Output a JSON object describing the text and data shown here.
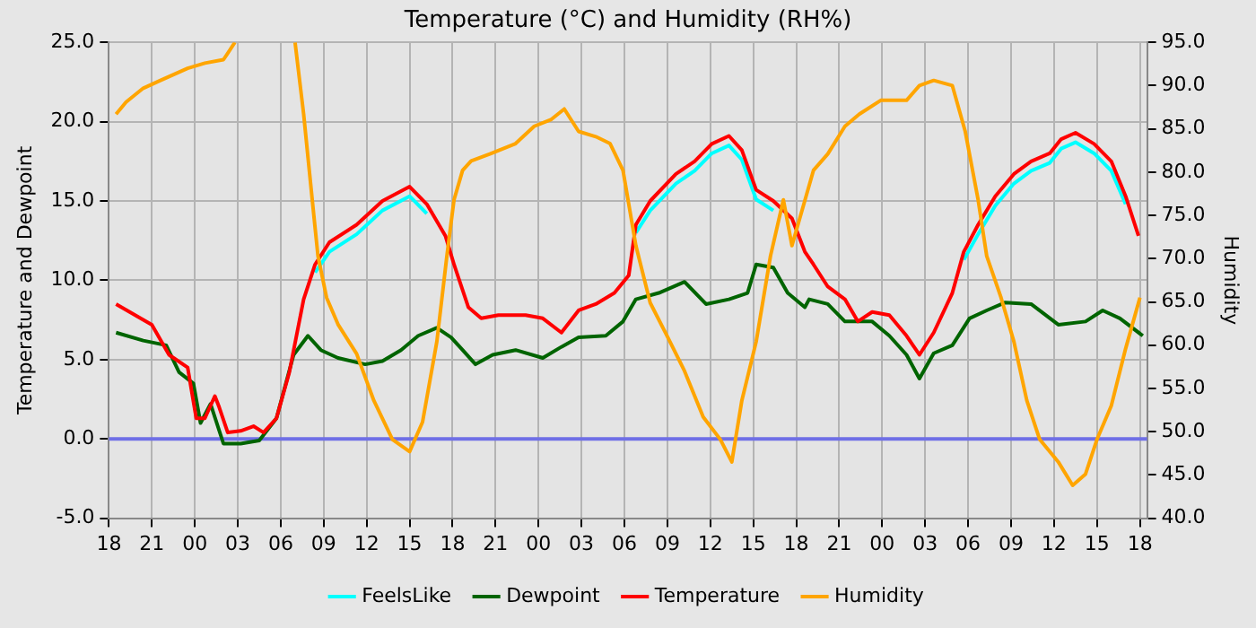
{
  "chart_data": {
    "type": "line",
    "title": "Temperature (°C) and Humidity (RH%)",
    "ylabel": "Temperature and Dewpoint",
    "y2label": "Humidity",
    "xlim": [
      "--01-01T18:00",
      "--01-04T18:30"
    ],
    "xticks": [
      {
        "value": "--01-01T18:00",
        "label": "18"
      },
      {
        "value": "--01-01T21:00",
        "label": "21"
      },
      {
        "value": "--01-02T00:00",
        "label": "00"
      },
      {
        "value": "--01-02T03:00",
        "label": "03"
      },
      {
        "value": "--01-02T06:00",
        "label": "06"
      },
      {
        "value": "--01-02T09:00",
        "label": "09"
      },
      {
        "value": "--01-02T12:00",
        "label": "12"
      },
      {
        "value": "--01-02T15:00",
        "label": "15"
      },
      {
        "value": "--01-02T18:00",
        "label": "18"
      },
      {
        "value": "--01-02T21:00",
        "label": "21"
      },
      {
        "value": "--01-03T00:00",
        "label": "00"
      },
      {
        "value": "--01-03T03:00",
        "label": "03"
      },
      {
        "value": "--01-03T06:00",
        "label": "06"
      },
      {
        "value": "--01-03T09:00",
        "label": "09"
      },
      {
        "value": "--01-03T12:00",
        "label": "12"
      },
      {
        "value": "--01-03T15:00",
        "label": "15"
      },
      {
        "value": "--01-03T18:00",
        "label": "18"
      },
      {
        "value": "--01-03T21:00",
        "label": "21"
      },
      {
        "value": "--01-04T00:00",
        "label": "00"
      },
      {
        "value": "--01-04T03:00",
        "label": "03"
      },
      {
        "value": "--01-04T06:00",
        "label": "06"
      },
      {
        "value": "--01-04T09:00",
        "label": "09"
      },
      {
        "value": "--01-04T12:00",
        "label": "12"
      },
      {
        "value": "--01-04T15:00",
        "label": "15"
      },
      {
        "value": "--01-04T18:00",
        "label": "18"
      }
    ],
    "ylim": [
      -5,
      25
    ],
    "yticks": [
      {
        "value": -5,
        "label": "-5.0"
      },
      {
        "value": 0,
        "label": "0.0"
      },
      {
        "value": 5,
        "label": "5.0"
      },
      {
        "value": 10,
        "label": "10.0"
      },
      {
        "value": 15,
        "label": "15.0"
      },
      {
        "value": 20,
        "label": "20.0"
      },
      {
        "value": 25,
        "label": "25.0"
      }
    ],
    "y2lim": [
      40,
      95
    ],
    "y2ticks": [
      {
        "value": 40,
        "label": "40.0"
      },
      {
        "value": 45,
        "label": "45.0"
      },
      {
        "value": 50,
        "label": "50.0"
      },
      {
        "value": 55,
        "label": "55.0"
      },
      {
        "value": 60,
        "label": "60.0"
      },
      {
        "value": 65,
        "label": "65.0"
      },
      {
        "value": 70,
        "label": "70.0"
      },
      {
        "value": 75,
        "label": "75.0"
      },
      {
        "value": 80,
        "label": "80.0"
      },
      {
        "value": 85,
        "label": "85.0"
      },
      {
        "value": 90,
        "label": "90.0"
      },
      {
        "value": 95,
        "label": "95.0"
      }
    ],
    "grid": true,
    "legend": "bottom",
    "marker": "none",
    "line_style": "solid",
    "ref_lines": [
      {
        "axis": "y",
        "value": 0,
        "color": "#6f6fe6"
      }
    ],
    "series": [
      {
        "name": "FeelsLike",
        "color": "#00ffff",
        "x": [
          "--01-02T08:24",
          "--01-02T09:24",
          "--01-02T11:18",
          "--01-02T13:06",
          "--01-02T15:00",
          "--01-02T16:12",
          "--01-03T00:00",
          "--01-03T06:48",
          "--01-03T07:48",
          "--01-03T09:36",
          "--01-03T10:54",
          "--01-03T12:06",
          "--01-03T13:18",
          "--01-03T14:12",
          "--01-03T15:12",
          "--01-03T16:24",
          "--01-04T00:00",
          "--01-04T05:42",
          "--01-04T06:42",
          "--01-04T07:54",
          "--01-04T09:12",
          "--01-04T10:24",
          "--01-04T11:42",
          "--01-04T12:30",
          "--01-04T13:30",
          "--01-04T14:48",
          "--01-04T16:00",
          "--01-04T17:00"
        ],
        "values": [
          10.5,
          11.8,
          12.9,
          14.4,
          15.3,
          14.2,
          null,
          13.0,
          14.4,
          16.1,
          16.9,
          18.0,
          18.5,
          17.6,
          15.1,
          14.4,
          null,
          11.3,
          12.9,
          14.7,
          16.1,
          16.9,
          17.4,
          18.3,
          18.7,
          18.0,
          16.9,
          14.8
        ]
      },
      {
        "name": "Dewpoint",
        "color": "#006400",
        "x": [
          "--01-01T18:30",
          "--01-01T20:24",
          "--01-01T22:00",
          "--01-01T22:54",
          "--01-01T23:54",
          "--01-02T00:24",
          "--01-02T01:06",
          "--01-02T02:00",
          "--01-02T03:12",
          "--01-02T04:30",
          "--01-02T05:42",
          "--01-02T06:54",
          "--01-02T07:54",
          "--01-02T08:48",
          "--01-02T10:00",
          "--01-02T11:54",
          "--01-02T13:06",
          "--01-02T14:24",
          "--01-02T15:36",
          "--01-02T16:54",
          "--01-02T17:54",
          "--01-02T18:42",
          "--01-02T19:36",
          "--01-02T20:48",
          "--01-02T22:24",
          "--01-03T00:18",
          "--01-03T01:36",
          "--01-03T02:48",
          "--01-03T04:42",
          "--01-03T05:54",
          "--01-03T06:48",
          "--01-03T08:24",
          "--01-03T10:12",
          "--01-03T11:42",
          "--01-03T13:18",
          "--01-03T14:36",
          "--01-03T15:12",
          "--01-03T16:24",
          "--01-03T17:24",
          "--01-03T18:36",
          "--01-03T18:54",
          "--01-03T20:12",
          "--01-03T21:24",
          "--01-03T23:18",
          "--01-04T00:30",
          "--01-04T01:42",
          "--01-04T02:36",
          "--01-04T03:36",
          "--01-04T04:54",
          "--01-04T06:06",
          "--01-04T07:18",
          "--01-04T08:36",
          "--01-04T10:24",
          "--01-04T12:18",
          "--01-04T14:12",
          "--01-04T15:24",
          "--01-04T16:36",
          "--01-04T18:12"
        ],
        "values": [
          6.7,
          6.2,
          5.9,
          4.2,
          3.5,
          1.0,
          2.2,
          -0.3,
          -0.3,
          -0.1,
          1.3,
          5.3,
          6.5,
          5.6,
          5.1,
          4.7,
          4.9,
          5.6,
          6.5,
          7.0,
          6.4,
          5.6,
          4.7,
          5.3,
          5.6,
          5.1,
          5.8,
          6.4,
          6.5,
          7.4,
          8.8,
          9.2,
          9.9,
          8.5,
          8.8,
          9.2,
          11.0,
          10.8,
          9.2,
          8.3,
          8.8,
          8.5,
          7.4,
          7.4,
          6.5,
          5.3,
          3.8,
          5.4,
          5.9,
          7.6,
          8.1,
          8.6,
          8.5,
          7.2,
          7.4,
          8.1,
          7.6,
          6.5
        ]
      },
      {
        "name": "Temperature",
        "color": "#ff0000",
        "x": [
          "--01-01T18:30",
          "--01-01T20:24",
          "--01-01T21:00",
          "--01-01T22:12",
          "--01-01T23:30",
          "--01-02T00:06",
          "--01-02T00:42",
          "--01-02T01:24",
          "--01-02T01:42",
          "--01-02T02:18",
          "--01-02T03:12",
          "--01-02T04:06",
          "--01-02T04:48",
          "--01-02T05:42",
          "--01-02T06:36",
          "--01-02T07:36",
          "--01-02T08:24",
          "--01-02T09:24",
          "--01-02T11:18",
          "--01-02T13:06",
          "--01-02T15:00",
          "--01-02T16:12",
          "--01-02T17:30",
          "--01-02T18:06",
          "--01-02T19:06",
          "--01-02T20:00",
          "--01-02T21:12",
          "--01-02T23:06",
          "--01-03T00:18",
          "--01-03T01:36",
          "--01-03T02:48",
          "--01-03T04:00",
          "--01-03T05:18",
          "--01-03T06:18",
          "--01-03T06:48",
          "--01-03T07:48",
          "--01-03T09:36",
          "--01-03T10:54",
          "--01-03T12:06",
          "--01-03T13:18",
          "--01-03T14:12",
          "--01-03T15:12",
          "--01-03T16:24",
          "--01-03T17:42",
          "--01-03T18:36",
          "--01-03T19:12",
          "--01-03T20:12",
          "--01-03T21:24",
          "--01-03T22:18",
          "--01-03T23:18",
          "--01-04T00:30",
          "--01-04T01:42",
          "--01-04T02:36",
          "--01-04T03:36",
          "--01-04T04:54",
          "--01-04T05:42",
          "--01-04T06:42",
          "--01-04T07:54",
          "--01-04T09:12",
          "--01-04T10:24",
          "--01-04T11:42",
          "--01-04T12:30",
          "--01-04T13:30",
          "--01-04T14:48",
          "--01-04T16:00",
          "--01-04T17:00",
          "--01-04T17:54"
        ],
        "values": [
          8.5,
          7.5,
          7.2,
          5.3,
          4.5,
          1.3,
          1.3,
          2.7,
          2.0,
          0.4,
          0.5,
          0.8,
          0.4,
          1.3,
          4.2,
          8.8,
          11.0,
          12.4,
          13.5,
          15.0,
          15.9,
          14.8,
          12.8,
          11.0,
          8.3,
          7.6,
          7.8,
          7.8,
          7.6,
          6.7,
          8.1,
          8.5,
          9.2,
          10.3,
          13.5,
          15.0,
          16.7,
          17.5,
          18.6,
          19.1,
          18.2,
          15.7,
          15.0,
          13.9,
          11.8,
          11.0,
          9.6,
          8.8,
          7.4,
          8.0,
          7.8,
          6.5,
          5.3,
          6.7,
          9.2,
          11.8,
          13.5,
          15.3,
          16.7,
          17.5,
          18.0,
          18.9,
          19.3,
          18.6,
          17.5,
          15.3,
          12.8
        ]
      },
      {
        "name": "Humidity",
        "color": "#ffa500",
        "axis": "y2",
        "x": [
          "--01-01T18:30",
          "--01-01T19:12",
          "--01-01T20:24",
          "--01-01T21:36",
          "--01-01T23:30",
          "--01-02T00:42",
          "--01-02T02:00",
          "--01-02T02:48",
          "--01-02T04:30",
          "--01-02T07:00",
          "--01-02T07:36",
          "--01-02T08:12",
          "--01-02T08:36",
          "--01-02T09:12",
          "--01-02T10:00",
          "--01-02T11:18",
          "--01-02T12:30",
          "--01-02T13:48",
          "--01-02T15:00",
          "--01-02T15:54",
          "--01-02T16:54",
          "--01-02T17:36",
          "--01-02T18:06",
          "--01-02T18:42",
          "--01-02T19:18",
          "--01-02T20:36",
          "--01-02T22:24",
          "--01-02T23:42",
          "--01-03T00:54",
          "--01-03T01:48",
          "--01-03T02:48",
          "--01-03T04:00",
          "--01-03T05:00",
          "--01-03T05:54",
          "--01-03T06:48",
          "--01-03T07:48",
          "--01-03T09:00",
          "--01-03T10:12",
          "--01-03T11:30",
          "--01-03T12:42",
          "--01-03T13:30",
          "--01-03T14:12",
          "--01-03T15:12",
          "--01-03T16:12",
          "--01-03T17:06",
          "--01-03T17:42",
          "--01-03T19:12",
          "--01-03T20:12",
          "--01-03T21:24",
          "--01-03T22:24",
          "--01-03T23:54",
          "--01-04T01:42",
          "--01-04T02:36",
          "--01-04T03:36",
          "--01-04T04:54",
          "--01-04T05:48",
          "--01-04T06:42",
          "--01-04T07:18",
          "--01-04T08:18",
          "--01-04T09:12",
          "--01-04T10:06",
          "--01-04T11:00",
          "--01-04T12:18",
          "--01-04T13:18",
          "--01-04T14:12",
          "--01-04T15:00",
          "--01-04T16:00",
          "--01-04T17:00",
          "--01-04T18:00"
        ],
        "values": [
          86.7,
          88.1,
          89.7,
          90.6,
          92.0,
          92.6,
          93.0,
          95.0,
          null,
          95.0,
          86.7,
          76.8,
          70.3,
          65.5,
          62.4,
          59.0,
          53.6,
          49.1,
          47.7,
          51.1,
          60.4,
          70.3,
          76.8,
          80.2,
          81.3,
          82.1,
          83.3,
          85.3,
          86.1,
          87.3,
          84.7,
          84.1,
          83.3,
          80.2,
          71.5,
          64.9,
          61.0,
          57.0,
          51.7,
          49.1,
          46.5,
          53.6,
          60.4,
          70.3,
          76.8,
          71.5,
          80.2,
          82.1,
          85.3,
          86.7,
          88.3,
          88.3,
          90.0,
          90.6,
          90.0,
          84.7,
          76.8,
          70.3,
          65.5,
          60.4,
          53.6,
          49.1,
          46.5,
          43.8,
          45.1,
          49.1,
          53.0,
          59.6,
          65.5
        ]
      }
    ]
  }
}
